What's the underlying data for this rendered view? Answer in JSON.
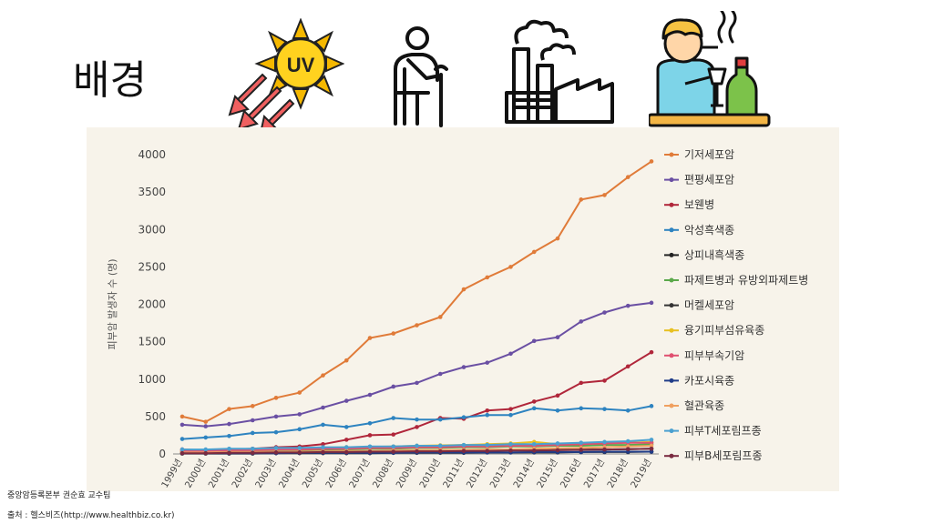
{
  "slide": {
    "title": "배경",
    "source_team": "중앙암등록본부 권순효 교수팀",
    "source_site": "출처 : 헬스비즈(http://www.healthbiz.co.kr)"
  },
  "icons": {
    "uv": {
      "name": "uv-sun-icon",
      "text": "UV"
    },
    "elderly": {
      "name": "elderly-person-icon"
    },
    "factory": {
      "name": "factory-icon"
    },
    "drinker": {
      "name": "smoking-drinking-person-icon"
    }
  },
  "chart_data": {
    "type": "line",
    "ylabel": "피부암 발생자 수 (명)",
    "ylim": [
      0,
      4000
    ],
    "yticks": [
      0,
      500,
      1000,
      1500,
      2000,
      2500,
      3000,
      3500,
      4000
    ],
    "categories": [
      "1999년",
      "2000년",
      "2001년",
      "2002년",
      "2003년",
      "2004년",
      "2005년",
      "2006년",
      "2007년",
      "2008년",
      "2009년",
      "2010년",
      "2011년",
      "2012년",
      "2013년",
      "2014년",
      "2015년",
      "2016년",
      "2017년",
      "2018년",
      "2019년"
    ],
    "legend_position": "right",
    "grid": false,
    "series": [
      {
        "name": "기저세포암",
        "color": "#e07b39",
        "values": [
          500,
          430,
          600,
          640,
          750,
          820,
          1050,
          1250,
          1550,
          1610,
          1720,
          1830,
          2200,
          2360,
          2500,
          2700,
          2880,
          3400,
          3460,
          3700,
          3910
        ]
      },
      {
        "name": "편평세포암",
        "color": "#6a4fa3",
        "values": [
          390,
          370,
          400,
          450,
          500,
          530,
          620,
          710,
          790,
          900,
          950,
          1070,
          1160,
          1220,
          1340,
          1510,
          1560,
          1770,
          1890,
          1980,
          2020
        ]
      },
      {
        "name": "보웬병",
        "color": "#b0263a",
        "values": [
          60,
          50,
          60,
          70,
          90,
          100,
          130,
          190,
          250,
          260,
          360,
          480,
          470,
          580,
          600,
          700,
          780,
          950,
          980,
          1170,
          1360
        ]
      },
      {
        "name": "악성흑색종",
        "color": "#2d83c0",
        "values": [
          200,
          220,
          240,
          280,
          290,
          330,
          390,
          360,
          410,
          480,
          460,
          460,
          490,
          520,
          520,
          610,
          580,
          610,
          600,
          580,
          640
        ]
      },
      {
        "name": "상피내흑색종",
        "color": "#222222",
        "values": [
          20,
          20,
          20,
          25,
          25,
          30,
          30,
          35,
          35,
          40,
          40,
          45,
          45,
          50,
          50,
          55,
          55,
          60,
          60,
          65,
          70
        ]
      },
      {
        "name": "파제트병과 유방외파제트병",
        "color": "#5aa84a",
        "values": [
          30,
          30,
          40,
          40,
          50,
          50,
          60,
          60,
          70,
          70,
          80,
          80,
          90,
          90,
          100,
          100,
          110,
          110,
          120,
          120,
          130
        ]
      },
      {
        "name": "머켈세포암",
        "color": "#333333",
        "values": [
          5,
          5,
          5,
          5,
          10,
          10,
          10,
          10,
          10,
          15,
          15,
          15,
          15,
          20,
          20,
          20,
          20,
          25,
          25,
          25,
          30
        ]
      },
      {
        "name": "융기피부섬유육종",
        "color": "#e8c020",
        "values": [
          40,
          45,
          50,
          60,
          70,
          75,
          80,
          90,
          95,
          100,
          110,
          115,
          120,
          130,
          140,
          160,
          130,
          140,
          145,
          150,
          160
        ]
      },
      {
        "name": "피부부속기암",
        "color": "#e05070",
        "values": [
          40,
          40,
          50,
          50,
          60,
          60,
          70,
          70,
          80,
          80,
          90,
          90,
          100,
          100,
          110,
          110,
          120,
          130,
          140,
          150,
          150
        ]
      },
      {
        "name": "카포시육종",
        "color": "#1f3c88",
        "values": [
          10,
          10,
          10,
          10,
          10,
          15,
          15,
          15,
          15,
          15,
          20,
          20,
          20,
          20,
          20,
          25,
          25,
          25,
          30,
          30,
          30
        ]
      },
      {
        "name": "혈관육종",
        "color": "#f0a060",
        "values": [
          20,
          20,
          25,
          25,
          30,
          30,
          35,
          40,
          40,
          45,
          50,
          50,
          55,
          60,
          60,
          70,
          75,
          80,
          90,
          100,
          110
        ]
      },
      {
        "name": "피부T세포림프종",
        "color": "#4aa0d0",
        "values": [
          60,
          60,
          70,
          70,
          80,
          80,
          90,
          90,
          100,
          100,
          110,
          110,
          120,
          120,
          130,
          130,
          140,
          150,
          160,
          170,
          190
        ]
      },
      {
        "name": "피부B세포림프종",
        "color": "#7a2a40",
        "values": [
          10,
          10,
          15,
          15,
          20,
          20,
          25,
          25,
          30,
          30,
          35,
          35,
          40,
          40,
          45,
          45,
          50,
          55,
          60,
          65,
          70
        ]
      }
    ]
  }
}
